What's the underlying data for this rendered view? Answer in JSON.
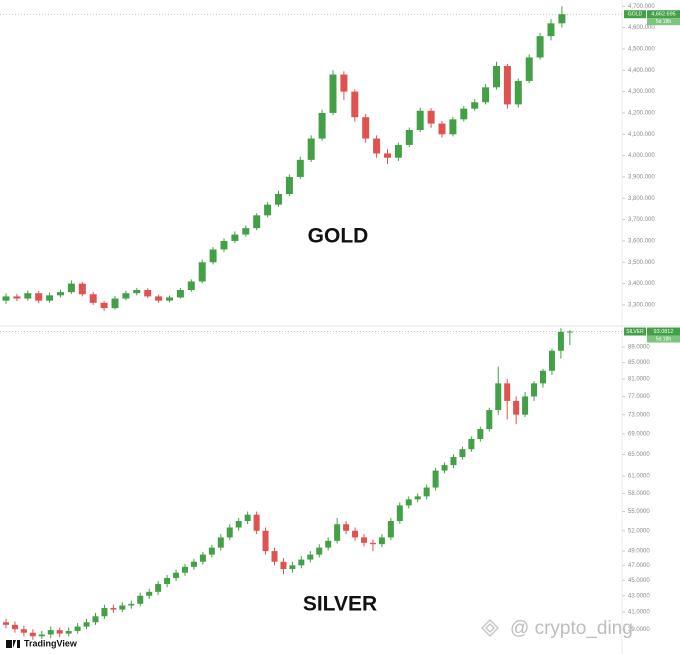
{
  "chart_data": [
    {
      "type": "candlestick",
      "title": "GOLD",
      "symbol": "GOLD",
      "last_price": {
        "value": 4662.695,
        "label": "4,662.695"
      },
      "countdown": "5d 18h",
      "up_color": "#43a047",
      "down_color": "#e0524f",
      "log": false,
      "ylim": [
        3220,
        4720
      ],
      "yticks": [
        {
          "value": 3300,
          "label": "3,300.000"
        },
        {
          "value": 3400,
          "label": "3,400.000"
        },
        {
          "value": 3500,
          "label": "3,500.000"
        },
        {
          "value": 3600,
          "label": "3,600.000"
        },
        {
          "value": 3700,
          "label": "3,700.000"
        },
        {
          "value": 3800,
          "label": "3,800.000"
        },
        {
          "value": 3900,
          "label": "3,900.000"
        },
        {
          "value": 4000,
          "label": "4,000.000"
        },
        {
          "value": 4100,
          "label": "4,100.000"
        },
        {
          "value": 4200,
          "label": "4,200.000"
        },
        {
          "value": 4300,
          "label": "4,300.000"
        },
        {
          "value": 4400,
          "label": "4,400.000"
        },
        {
          "value": 4500,
          "label": "4,500.000"
        },
        {
          "value": 4600,
          "label": "4,600.000"
        },
        {
          "value": 4700,
          "label": "4,700.000"
        }
      ],
      "candles": [
        [
          3320,
          3355,
          3305,
          3340
        ],
        [
          3340,
          3352,
          3318,
          3330
        ],
        [
          3330,
          3368,
          3320,
          3355
        ],
        [
          3355,
          3365,
          3308,
          3320
        ],
        [
          3320,
          3358,
          3310,
          3345
        ],
        [
          3345,
          3372,
          3335,
          3360
        ],
        [
          3360,
          3415,
          3352,
          3400
        ],
        [
          3400,
          3408,
          3340,
          3350
        ],
        [
          3350,
          3360,
          3300,
          3310
        ],
        [
          3310,
          3318,
          3272,
          3285
        ],
        [
          3285,
          3342,
          3278,
          3330
        ],
        [
          3330,
          3366,
          3322,
          3355
        ],
        [
          3355,
          3380,
          3345,
          3370
        ],
        [
          3370,
          3378,
          3332,
          3340
        ],
        [
          3340,
          3348,
          3310,
          3320
        ],
        [
          3320,
          3344,
          3312,
          3335
        ],
        [
          3335,
          3380,
          3330,
          3370
        ],
        [
          3370,
          3420,
          3362,
          3410
        ],
        [
          3410,
          3512,
          3402,
          3500
        ],
        [
          3500,
          3572,
          3490,
          3560
        ],
        [
          3560,
          3612,
          3548,
          3600
        ],
        [
          3600,
          3645,
          3590,
          3630
        ],
        [
          3630,
          3672,
          3620,
          3660
        ],
        [
          3660,
          3730,
          3650,
          3720
        ],
        [
          3720,
          3782,
          3710,
          3770
        ],
        [
          3770,
          3835,
          3760,
          3820
        ],
        [
          3820,
          3912,
          3810,
          3900
        ],
        [
          3900,
          3995,
          3890,
          3980
        ],
        [
          3980,
          4095,
          3970,
          4080
        ],
        [
          4080,
          4215,
          4070,
          4200
        ],
        [
          4200,
          4400,
          4190,
          4380
        ],
        [
          4380,
          4395,
          4260,
          4300
        ],
        [
          4300,
          4310,
          4160,
          4180
        ],
        [
          4180,
          4195,
          4060,
          4080
        ],
        [
          4080,
          4095,
          3990,
          4010
        ],
        [
          4010,
          4030,
          3960,
          3990
        ],
        [
          3990,
          4062,
          3975,
          4050
        ],
        [
          4050,
          4132,
          4040,
          4120
        ],
        [
          4120,
          4225,
          4110,
          4210
        ],
        [
          4210,
          4222,
          4130,
          4150
        ],
        [
          4150,
          4162,
          4085,
          4100
        ],
        [
          4100,
          4182,
          4090,
          4170
        ],
        [
          4170,
          4232,
          4160,
          4220
        ],
        [
          4220,
          4265,
          4210,
          4250
        ],
        [
          4250,
          4335,
          4240,
          4320
        ],
        [
          4320,
          4440,
          4310,
          4420
        ],
        [
          4420,
          4430,
          4220,
          4240
        ],
        [
          4240,
          4362,
          4225,
          4350
        ],
        [
          4350,
          4475,
          4340,
          4460
        ],
        [
          4460,
          4575,
          4450,
          4560
        ],
        [
          4560,
          4640,
          4540,
          4620
        ],
        [
          4620,
          4700,
          4600,
          4663
        ]
      ]
    },
    {
      "type": "candlestick",
      "title": "SILVER",
      "symbol": "SILVER",
      "last_price": {
        "value": 93.0812,
        "label": "93.0812"
      },
      "countdown": "5d 18h",
      "up_color": "#43a047",
      "down_color": "#e0524f",
      "log": true,
      "ylim": [
        36.7,
        93.5
      ],
      "yticks": [
        {
          "value": 39,
          "label": "39.0000"
        },
        {
          "value": 41,
          "label": "41.0000"
        },
        {
          "value": 43,
          "label": "43.0000"
        },
        {
          "value": 45,
          "label": "45.0000"
        },
        {
          "value": 47,
          "label": "47.0000"
        },
        {
          "value": 49,
          "label": "49.0000"
        },
        {
          "value": 52,
          "label": "52.0000"
        },
        {
          "value": 55,
          "label": "55.0000"
        },
        {
          "value": 58,
          "label": "58.0000"
        },
        {
          "value": 61,
          "label": "61.0000"
        },
        {
          "value": 65,
          "label": "65.0000"
        },
        {
          "value": 69,
          "label": "69.0000"
        },
        {
          "value": 73,
          "label": "73.0000"
        },
        {
          "value": 77,
          "label": "77.0000"
        },
        {
          "value": 81,
          "label": "81.0000"
        },
        {
          "value": 85,
          "label": "85.0000"
        },
        {
          "value": 89,
          "label": "89.0000"
        }
      ],
      "candles": [
        [
          39.8,
          40.2,
          39.1,
          39.5
        ],
        [
          39.5,
          39.9,
          38.6,
          39.0
        ],
        [
          39.0,
          39.4,
          38.2,
          38.6
        ],
        [
          38.6,
          39.0,
          37.8,
          38.2
        ],
        [
          38.2,
          38.8,
          37.9,
          38.4
        ],
        [
          38.4,
          39.3,
          38.0,
          38.9
        ],
        [
          38.9,
          39.2,
          38.1,
          38.5
        ],
        [
          38.5,
          39.2,
          38.2,
          38.8
        ],
        [
          38.8,
          39.7,
          38.5,
          39.3
        ],
        [
          39.3,
          40.2,
          39.0,
          39.8
        ],
        [
          39.8,
          40.9,
          39.5,
          40.5
        ],
        [
          40.5,
          41.9,
          40.2,
          41.5
        ],
        [
          41.5,
          41.9,
          40.9,
          41.3
        ],
        [
          41.3,
          42.2,
          41.0,
          41.8
        ],
        [
          41.8,
          42.4,
          41.4,
          42.0
        ],
        [
          42.0,
          43.4,
          41.7,
          43.0
        ],
        [
          43.0,
          43.9,
          42.6,
          43.5
        ],
        [
          43.5,
          44.9,
          43.1,
          44.5
        ],
        [
          44.5,
          45.7,
          44.1,
          45.3
        ],
        [
          45.3,
          46.4,
          44.9,
          46.0
        ],
        [
          46.0,
          47.2,
          45.6,
          46.8
        ],
        [
          46.8,
          47.9,
          46.4,
          47.5
        ],
        [
          47.5,
          48.9,
          47.1,
          48.5
        ],
        [
          48.5,
          49.9,
          48.1,
          49.5
        ],
        [
          49.5,
          51.5,
          49.1,
          51.0
        ],
        [
          51.0,
          53.0,
          50.6,
          52.5
        ],
        [
          52.5,
          54.0,
          52.0,
          53.5
        ],
        [
          53.5,
          55.0,
          53.0,
          54.5
        ],
        [
          54.5,
          55.0,
          51.5,
          52.0
        ],
        [
          52.0,
          52.5,
          48.5,
          49.0
        ],
        [
          49.0,
          49.5,
          47.0,
          47.5
        ],
        [
          47.5,
          48.0,
          45.8,
          46.5
        ],
        [
          46.5,
          47.5,
          46.0,
          47.0
        ],
        [
          47.0,
          48.3,
          46.6,
          47.8
        ],
        [
          47.8,
          49.0,
          47.4,
          48.5
        ],
        [
          48.5,
          50.0,
          48.1,
          49.5
        ],
        [
          49.5,
          51.0,
          49.1,
          50.5
        ],
        [
          50.5,
          54.0,
          50.1,
          53.0
        ],
        [
          53.0,
          53.5,
          51.5,
          52.0
        ],
        [
          52.0,
          52.5,
          50.5,
          51.0
        ],
        [
          51.0,
          51.5,
          49.7,
          50.2
        ],
        [
          50.2,
          50.7,
          49.0,
          50.0
        ],
        [
          50.0,
          51.5,
          49.6,
          51.0
        ],
        [
          51.0,
          54.0,
          50.6,
          53.5
        ],
        [
          53.5,
          56.5,
          53.1,
          56.0
        ],
        [
          56.0,
          57.5,
          55.5,
          57.0
        ],
        [
          57.0,
          58.0,
          56.5,
          57.5
        ],
        [
          57.5,
          59.5,
          57.0,
          59.0
        ],
        [
          59.0,
          62.5,
          58.5,
          62.0
        ],
        [
          62.0,
          63.5,
          61.5,
          63.0
        ],
        [
          63.0,
          65.0,
          62.5,
          64.5
        ],
        [
          64.5,
          66.5,
          64.0,
          66.0
        ],
        [
          66.0,
          68.5,
          65.5,
          68.0
        ],
        [
          68.0,
          70.5,
          67.5,
          70.0
        ],
        [
          70.0,
          74.5,
          69.5,
          74.0
        ],
        [
          74.0,
          84.0,
          73.0,
          80.0
        ],
        [
          80.0,
          81.0,
          72.0,
          76.0
        ],
        [
          76.0,
          77.0,
          71.0,
          73.0
        ],
        [
          73.0,
          78.0,
          72.5,
          77.0
        ],
        [
          77.0,
          80.5,
          76.0,
          80.0
        ],
        [
          80.0,
          83.5,
          79.0,
          83.0
        ],
        [
          83.0,
          88.5,
          82.0,
          88.0
        ],
        [
          88.0,
          94.0,
          86.0,
          93.0
        ],
        [
          93.0,
          93.5,
          89.5,
          93.08
        ]
      ]
    }
  ],
  "brand": "TradingView",
  "watermark": "@ crypto_ding"
}
